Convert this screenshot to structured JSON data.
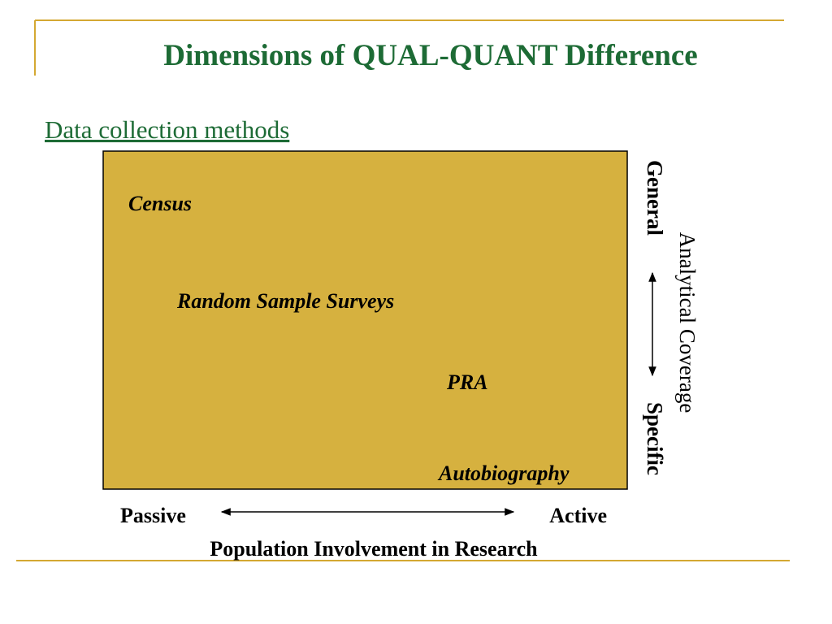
{
  "header": {
    "title": "Dimensions of  QUAL-QUANT Difference",
    "subtitle": "Data collection methods"
  },
  "diagram": {
    "items": [
      "Census",
      "Random Sample Surveys",
      "PRA",
      "Autobiography"
    ],
    "y_axis": {
      "label": "Analytical Coverage",
      "top": "General",
      "bottom": "Specific"
    },
    "x_axis": {
      "label": "Population Involvement in Research",
      "left": "Passive",
      "right": "Active"
    }
  }
}
